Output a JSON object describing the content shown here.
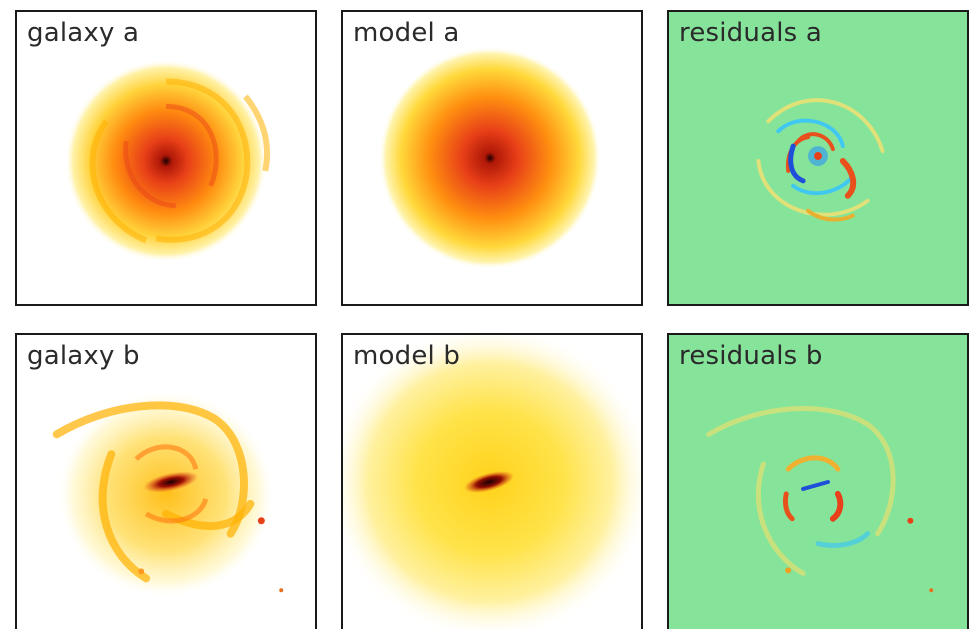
{
  "panels": {
    "galaxy_a": {
      "label": "galaxy a"
    },
    "model_a": {
      "label": "model a"
    },
    "residuals_a": {
      "label": "residuals a"
    },
    "galaxy_b": {
      "label": "galaxy b"
    },
    "model_b": {
      "label": "model b"
    },
    "residuals_b": {
      "label": "residuals b"
    }
  },
  "colors": {
    "border": "#1a1a1a",
    "residual_background": "#86e49a",
    "core": "#1a0000",
    "hot": "#e8401a",
    "warm": "#ffb000",
    "outer": "#fff3a0",
    "negative_residual": "#30c8f0"
  }
}
